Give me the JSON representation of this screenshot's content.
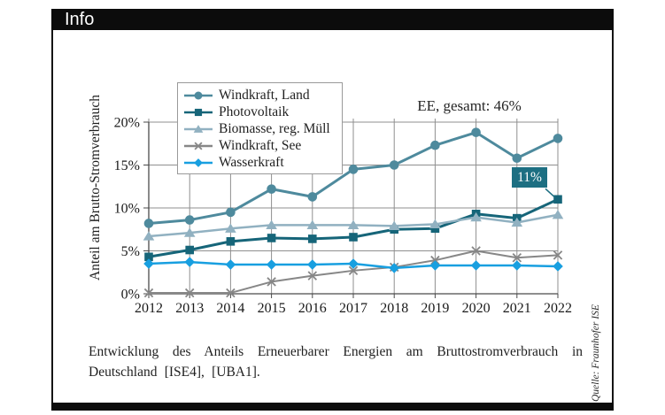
{
  "page": {
    "title_bar": "Info"
  },
  "caption": "Entwicklung des Anteils Erneuerbarer Energien am Bruttostromverbrauch in Deutschland [ISE4], [UBA1].",
  "source_note": "Quelle: Fraunhofer ISE",
  "chart_data": {
    "type": "line",
    "title": "EE, gesamt: 46%",
    "ylabel": "Anteil am Brutto-Stromverbrauch",
    "x": [
      2012,
      2013,
      2014,
      2015,
      2016,
      2017,
      2018,
      2019,
      2020,
      2021,
      2022
    ],
    "ylim": [
      0,
      20
    ],
    "yticks": [
      "0%",
      "5%",
      "10%",
      "15%",
      "20%"
    ],
    "grid": true,
    "grid_color": "#8f8f8f",
    "axis_color": "#4a4a4a",
    "legend_position": "top-left-overlay",
    "series": [
      {
        "name": "Windkraft, Land",
        "marker": "circle",
        "color": "#4e8a9d",
        "width": 3,
        "values": [
          8.2,
          8.6,
          9.5,
          12.2,
          11.3,
          14.5,
          15.0,
          17.3,
          18.8,
          15.8,
          18.1
        ]
      },
      {
        "name": "Photovoltaik",
        "marker": "square",
        "color": "#166579",
        "width": 3,
        "values": [
          4.3,
          5.1,
          6.1,
          6.5,
          6.4,
          6.6,
          7.5,
          7.6,
          9.3,
          8.8,
          11.0
        ]
      },
      {
        "name": "Biomasse, reg. Müll",
        "marker": "triangle",
        "color": "#91b1c1",
        "width": 2.5,
        "values": [
          6.7,
          7.1,
          7.6,
          8.0,
          8.0,
          8.0,
          7.9,
          8.1,
          8.9,
          8.3,
          9.2
        ]
      },
      {
        "name": "Windkraft, See",
        "marker": "x",
        "color": "#878787",
        "width": 2,
        "values": [
          0.1,
          0.1,
          0.1,
          1.4,
          2.1,
          2.7,
          3.1,
          3.9,
          5.0,
          4.2,
          4.5
        ]
      },
      {
        "name": "Wasserkraft",
        "marker": "diamond",
        "color": "#189fe0",
        "width": 2.5,
        "values": [
          3.5,
          3.7,
          3.4,
          3.4,
          3.4,
          3.5,
          3.0,
          3.3,
          3.3,
          3.3,
          3.2
        ]
      }
    ],
    "annotation": {
      "text": "11%",
      "series": "Photovoltaik",
      "year": 2022,
      "bg": "#1d6f82",
      "text_color": "#ffffff"
    }
  }
}
